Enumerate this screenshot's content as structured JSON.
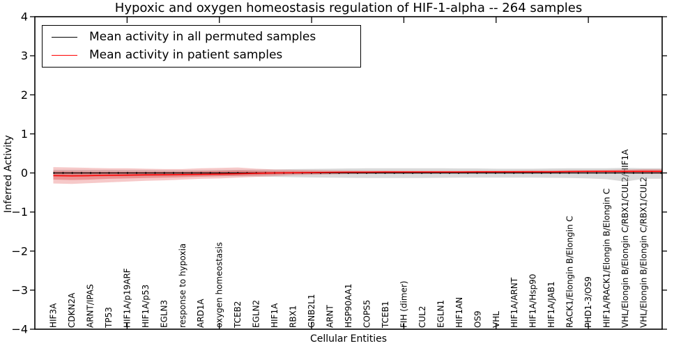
{
  "chart_data": {
    "type": "line",
    "title": "Hypoxic and oxygen homeostasis regulation of HIF-1-alpha -- 264 samples",
    "xlabel": "Cellular Entities",
    "ylabel": "Inferred Activity",
    "ylim": [
      -4,
      4
    ],
    "xlim": [
      0,
      34
    ],
    "y_ticks": [
      4,
      3,
      2,
      1,
      0,
      -1,
      -2,
      -3,
      -4
    ],
    "x_major_ticks": [
      5,
      10,
      15,
      20,
      25,
      30
    ],
    "grid": false,
    "categories": [
      "HIF3A",
      "CDKN2A",
      "ARNT/IPAS",
      "TP53",
      "HIF1A/p19ARF",
      "HIF1A/p53",
      "EGLN3",
      "response to hypoxia",
      "ARD1A",
      "oxygen homeostasis",
      "TCEB2",
      "EGLN2",
      "HIF1A",
      "RBX1",
      "GNB2L1",
      "ARNT",
      "HSP90AA1",
      "COPS5",
      "TCEB1",
      "FIH (dimer)",
      "CUL2",
      "EGLN1",
      "HIF1AN",
      "OS9",
      "VHL",
      "HIF1A/ARNT",
      "HIF1A/Hsp90",
      "HIF1A/JAB1",
      "RACK1/Elongin B/Elongin C",
      "PHD1-3/OS9",
      "HIF1A/RACK1/Elongin B/Elongin C",
      "VHL/Elongin B/Elongin C/RBX1/CUL2/HIF1A",
      "VHL/Elongin B/Elongin C/RBX1/CUL2"
    ],
    "legend": {
      "position": "upper-left",
      "entries": [
        {
          "label": "Mean activity in all permuted samples",
          "color": "#000000"
        },
        {
          "label": "Mean activity in patient samples",
          "color": "#ff0000"
        }
      ]
    },
    "series": [
      {
        "name": "Mean activity in all permuted samples",
        "color": "#000000",
        "values": [
          0,
          0,
          0,
          0,
          0,
          0,
          0,
          0,
          0,
          0,
          0,
          0,
          0,
          0,
          0,
          0,
          0,
          0,
          0,
          0,
          0,
          0,
          0,
          0,
          0,
          0,
          0,
          0,
          0,
          0,
          0,
          0,
          0
        ]
      },
      {
        "name": "Mean activity in patient samples",
        "color": "#ff0000",
        "values": [
          -0.07,
          -0.075,
          -0.07,
          -0.06,
          -0.055,
          -0.05,
          -0.045,
          -0.04,
          -0.035,
          -0.03,
          -0.02,
          -0.01,
          0.0,
          0.005,
          0.01,
          0.015,
          0.02,
          0.02,
          0.025,
          0.025,
          0.025,
          0.025,
          0.025,
          0.03,
          0.03,
          0.03,
          0.03,
          0.03,
          0.035,
          0.04,
          0.04,
          0.04,
          0.04
        ]
      }
    ],
    "bands": [
      {
        "name": "permuted-samples-range",
        "color": "#aaaaaa",
        "opacity": 0.45,
        "hi": [
          0.08,
          0.08,
          0.08,
          0.08,
          0.075,
          0.075,
          0.07,
          0.07,
          0.07,
          0.075,
          0.08,
          0.085,
          0.09,
          0.1,
          0.105,
          0.11,
          0.115,
          0.12,
          0.12,
          0.12,
          0.12,
          0.12,
          0.115,
          0.115,
          0.11,
          0.11,
          0.11,
          0.115,
          0.12,
          0.12,
          0.12,
          0.13,
          0.12
        ],
        "lo": [
          -0.09,
          -0.09,
          -0.09,
          -0.085,
          -0.085,
          -0.08,
          -0.08,
          -0.075,
          -0.075,
          -0.08,
          -0.085,
          -0.09,
          -0.1,
          -0.11,
          -0.115,
          -0.12,
          -0.125,
          -0.13,
          -0.13,
          -0.13,
          -0.13,
          -0.125,
          -0.12,
          -0.12,
          -0.12,
          -0.12,
          -0.12,
          -0.125,
          -0.13,
          -0.14,
          -0.16,
          -0.22,
          -0.15
        ]
      },
      {
        "name": "patient-samples-outer",
        "color": "#dd3c3c",
        "opacity": 0.28,
        "hi": [
          0.15,
          0.14,
          0.13,
          0.12,
          0.12,
          0.11,
          0.1,
          0.1,
          0.12,
          0.13,
          0.14,
          0.11,
          0.09,
          0.08,
          0.075,
          0.07,
          0.065,
          0.06,
          0.06,
          0.055,
          0.055,
          0.055,
          0.055,
          0.06,
          0.06,
          0.065,
          0.07,
          0.07,
          0.075,
          0.075,
          0.08,
          0.09,
          0.1
        ],
        "lo": [
          -0.27,
          -0.28,
          -0.26,
          -0.24,
          -0.22,
          -0.2,
          -0.19,
          -0.17,
          -0.15,
          -0.14,
          -0.12,
          -0.1,
          -0.08,
          -0.06,
          -0.05,
          -0.04,
          -0.03,
          -0.025,
          -0.02,
          -0.02,
          -0.02,
          -0.015,
          -0.015,
          -0.01,
          -0.01,
          -0.01,
          -0.01,
          -0.01,
          0.0,
          0.0,
          0.0,
          -0.01,
          -0.02
        ]
      },
      {
        "name": "patient-samples-inner",
        "color": "#dd3c3c",
        "opacity": 0.38,
        "hi": [
          0.04,
          0.035,
          0.03,
          0.03,
          0.03,
          0.03,
          0.03,
          0.03,
          0.04,
          0.05,
          0.06,
          0.05,
          0.04,
          0.04,
          0.04,
          0.04,
          0.04,
          0.04,
          0.04,
          0.04,
          0.04,
          0.04,
          0.04,
          0.04,
          0.045,
          0.045,
          0.05,
          0.05,
          0.055,
          0.055,
          0.06,
          0.065,
          0.07
        ],
        "lo": [
          -0.17,
          -0.18,
          -0.17,
          -0.15,
          -0.14,
          -0.13,
          -0.12,
          -0.11,
          -0.095,
          -0.085,
          -0.07,
          -0.055,
          -0.04,
          -0.025,
          -0.015,
          -0.01,
          -0.005,
          0.0,
          0.005,
          0.005,
          0.005,
          0.005,
          0.005,
          0.01,
          0.01,
          0.01,
          0.01,
          0.01,
          0.015,
          0.015,
          0.015,
          0.01,
          0.0
        ]
      }
    ]
  }
}
